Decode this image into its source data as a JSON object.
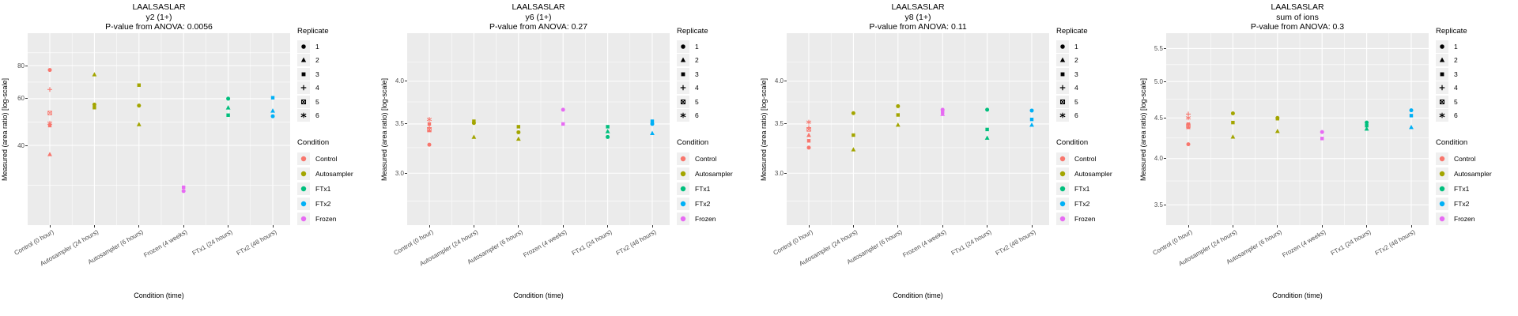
{
  "figure": {
    "x_axis_title": "Condition (time)",
    "y_axis_title": "Measured (area ratio) [log-scale]",
    "legend": {
      "replicate_title": "Replicate",
      "replicates": [
        {
          "label": "1",
          "shape": "circle"
        },
        {
          "label": "2",
          "shape": "triangle"
        },
        {
          "label": "3",
          "shape": "square"
        },
        {
          "label": "4",
          "shape": "plus"
        },
        {
          "label": "5",
          "shape": "square-cross"
        },
        {
          "label": "6",
          "shape": "asterisk"
        }
      ],
      "condition_title": "Condition",
      "conditions": [
        {
          "label": "Control",
          "color": "#F8766D"
        },
        {
          "label": "Autosampler",
          "color": "#A3A500"
        },
        {
          "label": "FTx1",
          "color": "#00BF7D"
        },
        {
          "label": "FTx2",
          "color": "#00B0F6"
        },
        {
          "label": "Frozen",
          "color": "#E76BF3"
        }
      ]
    },
    "colors": {
      "panel_background": "#EBEBEB",
      "gridline": "#FFFFFF",
      "axis_text": "#4D4D4D",
      "legend_key_background": "#F0F0F0"
    }
  },
  "chart_data": [
    {
      "type": "scatter",
      "title": "LAALSASLAR",
      "subtitle": "y2 (1+)",
      "anova_line": "P-value from ANOVA: 0.0056",
      "xlabel": "Condition (time)",
      "ylabel": "Measured (area ratio) [log-scale]",
      "log_scale": true,
      "ylim": [
        20,
        106
      ],
      "yticks": [
        {
          "value": 40,
          "label": "40"
        },
        {
          "value": 60,
          "label": "60"
        },
        {
          "value": 80,
          "label": "80"
        }
      ],
      "yminor": [
        28.3,
        49,
        69.3,
        89.4
      ],
      "categories": [
        "Control (0 hour)",
        "Autosampler (24 hours)",
        "Autosampler (6 hours)",
        "Frozen (4 weeks)",
        "FTx1 (24 hours)",
        "FTx2 (48 hours)"
      ],
      "points": [
        {
          "category": "Control (0 hour)",
          "condition": "Control",
          "replicate": 1,
          "value": 77
        },
        {
          "category": "Control (0 hour)",
          "condition": "Control",
          "replicate": 4,
          "value": 65
        },
        {
          "category": "Control (0 hour)",
          "condition": "Control",
          "replicate": 5,
          "value": 53
        },
        {
          "category": "Control (0 hour)",
          "condition": "Control",
          "replicate": 6,
          "value": 48.5
        },
        {
          "category": "Control (0 hour)",
          "condition": "Control",
          "replicate": 3,
          "value": 47.5
        },
        {
          "category": "Control (0 hour)",
          "condition": "Control",
          "replicate": 2,
          "value": 37
        },
        {
          "category": "Autosampler (24 hours)",
          "condition": "Autosampler",
          "replicate": 2,
          "value": 74
        },
        {
          "category": "Autosampler (24 hours)",
          "condition": "Autosampler",
          "replicate": 1,
          "value": 57
        },
        {
          "category": "Autosampler (24 hours)",
          "condition": "Autosampler",
          "replicate": 3,
          "value": 55.5
        },
        {
          "category": "Autosampler (6 hours)",
          "condition": "Autosampler",
          "replicate": 3,
          "value": 67.5
        },
        {
          "category": "Autosampler (6 hours)",
          "condition": "Autosampler",
          "replicate": 1,
          "value": 56.5
        },
        {
          "category": "Autosampler (6 hours)",
          "condition": "Autosampler",
          "replicate": 2,
          "value": 48
        },
        {
          "category": "Frozen (4 weeks)",
          "condition": "Frozen",
          "replicate": 3,
          "value": 27.8
        },
        {
          "category": "Frozen (4 weeks)",
          "condition": "Frozen",
          "replicate": 1,
          "value": 26.9
        },
        {
          "category": "FTx1 (24 hours)",
          "condition": "FTx1",
          "replicate": 1,
          "value": 60
        },
        {
          "category": "FTx1 (24 hours)",
          "condition": "FTx1",
          "replicate": 2,
          "value": 55.5
        },
        {
          "category": "FTx1 (24 hours)",
          "condition": "FTx1",
          "replicate": 3,
          "value": 52
        },
        {
          "category": "FTx2 (48 hours)",
          "condition": "FTx2",
          "replicate": 3,
          "value": 60.5
        },
        {
          "category": "FTx2 (48 hours)",
          "condition": "FTx2",
          "replicate": 2,
          "value": 54
        },
        {
          "category": "FTx2 (48 hours)",
          "condition": "FTx2",
          "replicate": 1,
          "value": 51.5
        }
      ]
    },
    {
      "type": "scatter",
      "title": "LAALSASLAR",
      "subtitle": "y6 (1+)",
      "anova_line": "P-value from ANOVA: 0.27",
      "xlabel": "Condition (time)",
      "ylabel": "Measured (area ratio) [log-scale]",
      "log_scale": true,
      "ylim": [
        2.55,
        4.65
      ],
      "yticks": [
        {
          "value": 3.0,
          "label": "3.0"
        },
        {
          "value": 3.5,
          "label": "3.5"
        },
        {
          "value": 4.0,
          "label": "4.0"
        }
      ],
      "yminor": [
        2.75,
        3.25,
        3.75,
        4.25
      ],
      "categories": [
        "Control (0 hour)",
        "Autosampler (24 hours)",
        "Autosampler (6 hours)",
        "Frozen (4 weeks)",
        "FTx1 (24 hours)",
        "FTx2 (48 hours)"
      ],
      "points": [
        {
          "category": "Control (0 hour)",
          "condition": "Control",
          "replicate": 6,
          "value": 3.55
        },
        {
          "category": "Control (0 hour)",
          "condition": "Control",
          "replicate": 3,
          "value": 3.5
        },
        {
          "category": "Control (0 hour)",
          "condition": "Control",
          "replicate": 4,
          "value": 3.46
        },
        {
          "category": "Control (0 hour)",
          "condition": "Control",
          "replicate": 5,
          "value": 3.44
        },
        {
          "category": "Control (0 hour)",
          "condition": "Control",
          "replicate": 2,
          "value": 3.43
        },
        {
          "category": "Control (0 hour)",
          "condition": "Control",
          "replicate": 1,
          "value": 3.28
        },
        {
          "category": "Autosampler (24 hours)",
          "condition": "Autosampler",
          "replicate": 3,
          "value": 3.53
        },
        {
          "category": "Autosampler (24 hours)",
          "condition": "Autosampler",
          "replicate": 1,
          "value": 3.51
        },
        {
          "category": "Autosampler (24 hours)",
          "condition": "Autosampler",
          "replicate": 2,
          "value": 3.36
        },
        {
          "category": "Autosampler (6 hours)",
          "condition": "Autosampler",
          "replicate": 3,
          "value": 3.47
        },
        {
          "category": "Autosampler (6 hours)",
          "condition": "Autosampler",
          "replicate": 1,
          "value": 3.41
        },
        {
          "category": "Autosampler (6 hours)",
          "condition": "Autosampler",
          "replicate": 2,
          "value": 3.34
        },
        {
          "category": "Frozen (4 weeks)",
          "condition": "Frozen",
          "replicate": 1,
          "value": 3.66
        },
        {
          "category": "Frozen (4 weeks)",
          "condition": "Frozen",
          "replicate": 3,
          "value": 3.5
        },
        {
          "category": "FTx1 (24 hours)",
          "condition": "FTx1",
          "replicate": 3,
          "value": 3.47
        },
        {
          "category": "FTx1 (24 hours)",
          "condition": "FTx1",
          "replicate": 2,
          "value": 3.42
        },
        {
          "category": "FTx1 (24 hours)",
          "condition": "FTx1",
          "replicate": 1,
          "value": 3.36
        },
        {
          "category": "FTx2 (48 hours)",
          "condition": "FTx2",
          "replicate": 3,
          "value": 3.53
        },
        {
          "category": "FTx2 (48 hours)",
          "condition": "FTx2",
          "replicate": 1,
          "value": 3.5
        },
        {
          "category": "FTx2 (48 hours)",
          "condition": "FTx2",
          "replicate": 2,
          "value": 3.4
        }
      ]
    },
    {
      "type": "scatter",
      "title": "LAALSASLAR",
      "subtitle": "y8 (1+)",
      "anova_line": "P-value from ANOVA: 0.11",
      "xlabel": "Condition (time)",
      "ylabel": "Measured (area ratio) [log-scale]",
      "log_scale": true,
      "ylim": [
        2.55,
        4.65
      ],
      "yticks": [
        {
          "value": 3.0,
          "label": "3.0"
        },
        {
          "value": 3.5,
          "label": "3.5"
        },
        {
          "value": 4.0,
          "label": "4.0"
        }
      ],
      "yminor": [
        2.75,
        3.25,
        3.75,
        4.25
      ],
      "categories": [
        "Control (0 hour)",
        "Autosampler (24 hours)",
        "Autosampler (6 hours)",
        "Frozen (4 weeks)",
        "FTx1 (24 hours)",
        "FTx2 (48 hours)"
      ],
      "points": [
        {
          "category": "Control (0 hour)",
          "condition": "Control",
          "replicate": 6,
          "value": 3.52
        },
        {
          "category": "Control (0 hour)",
          "condition": "Control",
          "replicate": 4,
          "value": 3.46
        },
        {
          "category": "Control (0 hour)",
          "condition": "Control",
          "replicate": 5,
          "value": 3.44
        },
        {
          "category": "Control (0 hour)",
          "condition": "Control",
          "replicate": 2,
          "value": 3.38
        },
        {
          "category": "Control (0 hour)",
          "condition": "Control",
          "replicate": 3,
          "value": 3.32
        },
        {
          "category": "Control (0 hour)",
          "condition": "Control",
          "replicate": 1,
          "value": 3.25
        },
        {
          "category": "Autosampler (24 hours)",
          "condition": "Autosampler",
          "replicate": 1,
          "value": 3.62
        },
        {
          "category": "Autosampler (24 hours)",
          "condition": "Autosampler",
          "replicate": 3,
          "value": 3.38
        },
        {
          "category": "Autosampler (24 hours)",
          "condition": "Autosampler",
          "replicate": 2,
          "value": 3.23
        },
        {
          "category": "Autosampler (6 hours)",
          "condition": "Autosampler",
          "replicate": 1,
          "value": 3.7
        },
        {
          "category": "Autosampler (6 hours)",
          "condition": "Autosampler",
          "replicate": 3,
          "value": 3.6
        },
        {
          "category": "Autosampler (6 hours)",
          "condition": "Autosampler",
          "replicate": 2,
          "value": 3.49
        },
        {
          "category": "Frozen (4 weeks)",
          "condition": "Frozen",
          "replicate": 1,
          "value": 3.66
        },
        {
          "category": "Frozen (4 weeks)",
          "condition": "Frozen",
          "replicate": 3,
          "value": 3.63
        },
        {
          "category": "Frozen (4 weeks)",
          "condition": "Frozen",
          "replicate": 2,
          "value": 3.61
        },
        {
          "category": "FTx1 (24 hours)",
          "condition": "FTx1",
          "replicate": 1,
          "value": 3.66
        },
        {
          "category": "FTx1 (24 hours)",
          "condition": "FTx1",
          "replicate": 3,
          "value": 3.44
        },
        {
          "category": "FTx1 (24 hours)",
          "condition": "FTx1",
          "replicate": 2,
          "value": 3.35
        },
        {
          "category": "FTx2 (48 hours)",
          "condition": "FTx2",
          "replicate": 1,
          "value": 3.65
        },
        {
          "category": "FTx2 (48 hours)",
          "condition": "FTx2",
          "replicate": 3,
          "value": 3.55
        },
        {
          "category": "FTx2 (48 hours)",
          "condition": "FTx2",
          "replicate": 2,
          "value": 3.49
        }
      ]
    },
    {
      "type": "scatter",
      "title": "LAALSASLAR",
      "subtitle": "sum of ions",
      "anova_line": "P-value from ANOVA: 0.3",
      "xlabel": "Condition (time)",
      "ylabel": "Measured (area ratio) [log-scale]",
      "log_scale": true,
      "ylim": [
        3.3,
        5.75
      ],
      "yticks": [
        {
          "value": 3.5,
          "label": "3.5"
        },
        {
          "value": 4.0,
          "label": "4.0"
        },
        {
          "value": 4.5,
          "label": "4.5"
        },
        {
          "value": 5.0,
          "label": "5.0"
        },
        {
          "value": 5.5,
          "label": "5.5"
        }
      ],
      "yminor": [
        3.75,
        4.25,
        4.75,
        5.25
      ],
      "categories": [
        "Control (0 hour)",
        "Autosampler (24 hours)",
        "Autosampler (6 hours)",
        "Frozen (4 weeks)",
        "FTx1 (24 hours)",
        "FTx2 (48 hours)"
      ],
      "points": [
        {
          "category": "Control (0 hour)",
          "condition": "Control",
          "replicate": 4,
          "value": 4.55
        },
        {
          "category": "Control (0 hour)",
          "condition": "Control",
          "replicate": 6,
          "value": 4.5
        },
        {
          "category": "Control (0 hour)",
          "condition": "Control",
          "replicate": 3,
          "value": 4.42
        },
        {
          "category": "Control (0 hour)",
          "condition": "Control",
          "replicate": 5,
          "value": 4.4
        },
        {
          "category": "Control (0 hour)",
          "condition": "Control",
          "replicate": 2,
          "value": 4.38
        },
        {
          "category": "Control (0 hour)",
          "condition": "Control",
          "replicate": 1,
          "value": 4.17
        },
        {
          "category": "Autosampler (24 hours)",
          "condition": "Autosampler",
          "replicate": 1,
          "value": 4.56
        },
        {
          "category": "Autosampler (24 hours)",
          "condition": "Autosampler",
          "replicate": 3,
          "value": 4.44
        },
        {
          "category": "Autosampler (24 hours)",
          "condition": "Autosampler",
          "replicate": 2,
          "value": 4.26
        },
        {
          "category": "Autosampler (6 hours)",
          "condition": "Autosampler",
          "replicate": 1,
          "value": 4.5
        },
        {
          "category": "Autosampler (6 hours)",
          "condition": "Autosampler",
          "replicate": 3,
          "value": 4.49
        },
        {
          "category": "Autosampler (6 hours)",
          "condition": "Autosampler",
          "replicate": 2,
          "value": 4.33
        },
        {
          "category": "Frozen (4 weeks)",
          "condition": "Frozen",
          "replicate": 1,
          "value": 4.32
        },
        {
          "category": "Frozen (4 weeks)",
          "condition": "Frozen",
          "replicate": 3,
          "value": 4.24
        },
        {
          "category": "FTx1 (24 hours)",
          "condition": "FTx1",
          "replicate": 1,
          "value": 4.44
        },
        {
          "category": "FTx1 (24 hours)",
          "condition": "FTx1",
          "replicate": 3,
          "value": 4.4
        },
        {
          "category": "FTx1 (24 hours)",
          "condition": "FTx1",
          "replicate": 2,
          "value": 4.36
        },
        {
          "category": "FTx2 (48 hours)",
          "condition": "FTx2",
          "replicate": 1,
          "value": 4.6
        },
        {
          "category": "FTx2 (48 hours)",
          "condition": "FTx2",
          "replicate": 3,
          "value": 4.53
        },
        {
          "category": "FTx2 (48 hours)",
          "condition": "FTx2",
          "replicate": 2,
          "value": 4.38
        }
      ]
    }
  ]
}
